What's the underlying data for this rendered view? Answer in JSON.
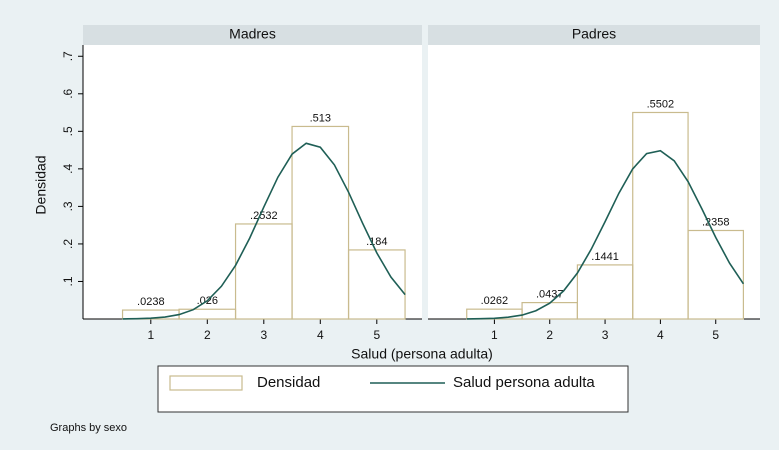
{
  "figure": {
    "ylabel": "Densidad",
    "xlabel": "Salud (persona adulta)",
    "note": "Graphs by sexo"
  },
  "chart_data": [
    {
      "type": "histogram",
      "title": "Madres",
      "bins": [
        0.5,
        1.5,
        2.5,
        3.5,
        4.5,
        5.5
      ],
      "xlim": [
        -0.2,
        5.8
      ],
      "xticks": [
        1,
        2,
        3,
        4,
        5
      ],
      "ylim": [
        0,
        0.73
      ],
      "yticks": [
        {
          "value": 0.1,
          "label": ".1"
        },
        {
          "value": 0.2,
          "label": ".2"
        },
        {
          "value": 0.3,
          "label": ".3"
        },
        {
          "value": 0.4,
          "label": ".4"
        },
        {
          "value": 0.5,
          "label": ".5"
        },
        {
          "value": 0.6,
          "label": ".6"
        },
        {
          "value": 0.7,
          "label": ".7"
        }
      ],
      "series": [
        {
          "name": "Densidad",
          "color": "#c9bb8e",
          "values": [
            0.0238,
            0.026,
            0.2532,
            0.513,
            0.184
          ],
          "value_labels": [
            ".0238",
            ".026",
            ".2532",
            ".513",
            ".184"
          ]
        },
        {
          "name": "Salud persona adulta",
          "type": "line",
          "color": "#1f5f56",
          "x": [
            0.5,
            0.75,
            1,
            1.25,
            1.5,
            1.75,
            2,
            2.25,
            2.5,
            2.75,
            3,
            3.25,
            3.5,
            3.75,
            4,
            4.25,
            4.5,
            4.75,
            5,
            5.25,
            5.5
          ],
          "values": [
            0.00024,
            0.00072,
            0.002,
            0.005,
            0.0117,
            0.0249,
            0.0486,
            0.0871,
            0.1431,
            0.2156,
            0.2981,
            0.3779,
            0.4392,
            0.4682,
            0.4578,
            0.4105,
            0.3376,
            0.2547,
            0.1762,
            0.1118,
            0.065
          ]
        }
      ]
    },
    {
      "type": "histogram",
      "title": "Padres",
      "bins": [
        0.5,
        1.5,
        2.5,
        3.5,
        4.5,
        5.5
      ],
      "xlim": [
        -0.2,
        5.8
      ],
      "xticks": [
        1,
        2,
        3,
        4,
        5
      ],
      "ylim": [
        0,
        0.73
      ],
      "yticks": [
        {
          "value": 0.1,
          "label": ".1"
        },
        {
          "value": 0.2,
          "label": ".2"
        },
        {
          "value": 0.3,
          "label": ".3"
        },
        {
          "value": 0.4,
          "label": ".4"
        },
        {
          "value": 0.5,
          "label": ".5"
        },
        {
          "value": 0.6,
          "label": ".6"
        },
        {
          "value": 0.7,
          "label": ".7"
        }
      ],
      "series": [
        {
          "name": "Densidad",
          "color": "#c9bb8e",
          "values": [
            0.0262,
            0.0437,
            0.1441,
            0.5502,
            0.2358
          ],
          "value_labels": [
            ".0262",
            ".0437",
            ".1441",
            ".5502",
            ".2358"
          ]
        },
        {
          "name": "Salud persona adulta",
          "type": "line",
          "color": "#1f5f56",
          "x": [
            0.5,
            0.75,
            1,
            1.25,
            1.5,
            1.75,
            2,
            2.25,
            2.5,
            2.75,
            3,
            3.25,
            3.5,
            3.75,
            4,
            4.25,
            4.5,
            4.75,
            5,
            5.25,
            5.5
          ],
          "values": [
            0.00025,
            0.0007,
            0.0019,
            0.0047,
            0.0105,
            0.022,
            0.0422,
            0.0748,
            0.1226,
            0.1856,
            0.2595,
            0.3352,
            0.3999,
            0.4406,
            0.4484,
            0.4215,
            0.3659,
            0.2934,
            0.2173,
            0.1487,
            0.0939
          ]
        }
      ]
    }
  ]
}
